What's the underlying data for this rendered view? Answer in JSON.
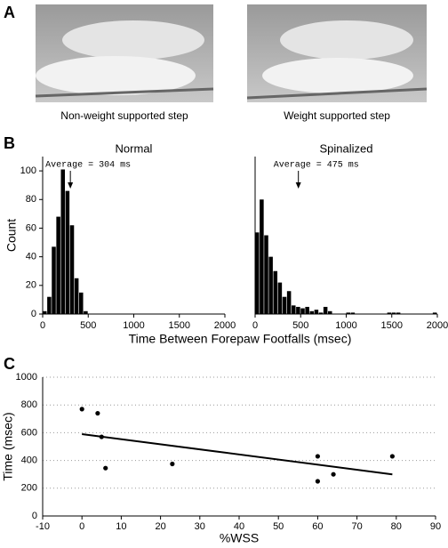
{
  "figure": {
    "panel_labels": [
      "A",
      "B",
      "C"
    ],
    "photo_captions": [
      "Non-weight supported step",
      "Weight supported step"
    ]
  },
  "chart_data": [
    {
      "type": "histogram",
      "title": "Normal",
      "ylabel": "Count",
      "xlabel": "Time Between Forepaw Footfalls (msec)",
      "bins": [
        0,
        50,
        100,
        150,
        200,
        250,
        300,
        350,
        400,
        450,
        500
      ],
      "values": [
        2,
        12,
        47,
        68,
        101,
        86,
        62,
        25,
        15,
        2
      ],
      "color": "#000000",
      "xlim": [
        0,
        2000
      ],
      "xticks": [
        0,
        500,
        1000,
        1500,
        2000
      ],
      "ylim": [
        0,
        110
      ],
      "yticks": [
        0,
        20,
        40,
        60,
        80,
        100
      ],
      "annotation": "Average = 304 ms",
      "average": 304
    },
    {
      "type": "histogram",
      "title": "Spinalized",
      "bins": [
        0,
        50,
        100,
        150,
        200,
        250,
        300,
        350,
        400,
        450,
        500,
        550,
        600,
        650,
        700,
        750,
        800,
        850,
        900,
        950,
        1000,
        1050,
        1100,
        1150,
        1200,
        1250,
        1300,
        1350,
        1400,
        1450,
        1500,
        1550,
        1600,
        1650,
        1700,
        1750,
        1800,
        1850,
        1900,
        1950,
        2000
      ],
      "values": [
        57,
        80,
        55,
        40,
        30,
        22,
        12,
        16,
        6,
        5,
        4,
        5,
        2,
        3,
        1,
        5,
        2,
        0,
        0,
        0,
        1,
        1,
        0,
        0,
        0,
        0,
        0,
        0,
        0,
        1,
        1,
        1,
        0,
        0,
        0,
        0,
        0,
        0,
        0,
        1
      ],
      "color": "#000000",
      "xlim": [
        0,
        2000
      ],
      "xticks": [
        0,
        500,
        1000,
        1500,
        2000
      ],
      "ylim": [
        0,
        110
      ],
      "annotation": "Average = 475 ms",
      "average": 475
    },
    {
      "type": "scatter",
      "xlabel": "%WSS",
      "ylabel": "Time (msec)",
      "x": [
        0,
        4,
        5,
        6,
        23,
        60,
        60,
        64,
        79
      ],
      "values": [
        770,
        740,
        570,
        345,
        375,
        430,
        250,
        300,
        430
      ],
      "color": "#000000",
      "fit": {
        "x": [
          0,
          79
        ],
        "values": [
          590,
          300
        ]
      },
      "xlim": [
        -10,
        90
      ],
      "xticks": [
        -10,
        0,
        10,
        20,
        30,
        40,
        50,
        60,
        70,
        80,
        90
      ],
      "ylim": [
        0,
        1000
      ],
      "yticks": [
        0,
        200,
        400,
        600,
        800,
        1000
      ],
      "grid": true
    }
  ]
}
